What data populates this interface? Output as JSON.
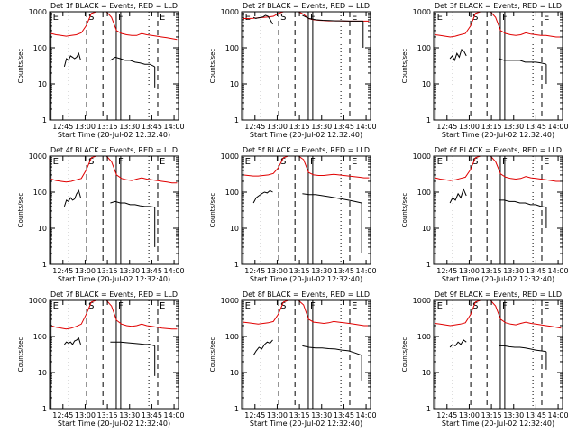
{
  "figure": {
    "panel_titles": [
      "Det 1f BLACK = Events, RED = LLD",
      "Det 2f BLACK = Events, RED = LLD",
      "Det 3f BLACK = Events, RED = LLD",
      "Det 4f BLACK = Events, RED = LLD",
      "Det 5f BLACK = Events, RED = LLD",
      "Det 6f BLACK = Events, RED = LLD",
      "Det 7f BLACK = Events, RED = LLD",
      "Det 8f BLACK = Events, RED = LLD",
      "Det 9f BLACK = Events, RED = LLD"
    ]
  },
  "colors": {
    "events": "#000000",
    "lld": "#e00000"
  },
  "chart_data": {
    "type": "line",
    "layout": "3x3 grid",
    "title_template": "Det {n}f BLACK = Events, RED = LLD",
    "xlabel": "Start Time (20-Jul-02 12:32:40)",
    "ylabel": "Counts/sec",
    "yscale": "log",
    "ylim": [
      1,
      1000
    ],
    "yticks": [
      1,
      10,
      100,
      1000
    ],
    "ytick_labels": [
      "1",
      "10",
      "100",
      "1000"
    ],
    "xlim_minutes": [
      36,
      123
    ],
    "xticks_minutes": [
      45,
      60,
      75,
      90,
      105,
      120
    ],
    "xtick_labels": [
      "12:45",
      "13:00",
      "13:15",
      "13:30",
      "13:45",
      "14:00"
    ],
    "markers": [
      {
        "label": "E",
        "minutes": 37,
        "style": "solid"
      },
      {
        "label": "",
        "minutes": 49,
        "style": "dotted"
      },
      {
        "label": "S",
        "minutes": 61,
        "style": "dashed"
      },
      {
        "label": "",
        "minutes": 72,
        "style": "dashed"
      },
      {
        "label": "F",
        "minutes": 81,
        "style": "solid"
      },
      {
        "label": "",
        "minutes": 84,
        "style": "solid"
      },
      {
        "label": "",
        "minutes": 103,
        "style": "dotted"
      },
      {
        "label": "E",
        "minutes": 109,
        "style": "dashed"
      }
    ],
    "series_names": [
      "Events",
      "LLD"
    ],
    "panels": [
      {
        "detector": "1f",
        "events_segments": [
          {
            "start": 46,
            "end": 57,
            "values": [
              30,
              50,
              45,
              60,
              55,
              50,
              55,
              70,
              45
            ]
          },
          {
            "start": 77,
            "end": 107,
            "values": [
              45,
              55,
              50,
              45,
              45,
              40,
              38,
              35,
              35,
              30
            ]
          }
        ],
        "events_dropout": {
          "minutes": 107,
          "to": 8
        },
        "lld_values": [
          250,
          230,
          220,
          210,
          220,
          230,
          260,
          420,
          900,
          1000,
          1000,
          1000,
          700,
          300,
          250,
          230,
          220,
          220,
          250,
          230,
          220,
          210,
          200,
          190,
          180,
          170
        ]
      },
      {
        "detector": "2f",
        "events_segments": [
          {
            "start": 44,
            "end": 57,
            "values": [
              700,
              650,
              680,
              700,
              720,
              800,
              750,
              600,
              450
            ]
          },
          {
            "start": 77,
            "end": 118,
            "values": [
              800,
              650,
              600,
              580,
              570,
              560,
              560,
              550,
              550,
              550
            ]
          }
        ],
        "events_dropout": {
          "minutes": 118,
          "to": 100
        },
        "lld_values": [
          650,
          650,
          660,
          680,
          700,
          720,
          750,
          900,
          1000,
          1000,
          1000,
          1000,
          850,
          650,
          600,
          580,
          570,
          560,
          560,
          560,
          550,
          550,
          550,
          550,
          550,
          550
        ]
      },
      {
        "detector": "3f",
        "events_segments": [
          {
            "start": 47,
            "end": 58,
            "values": [
              50,
              60,
              45,
              70,
              55,
              90,
              80,
              60
            ]
          },
          {
            "start": 80,
            "end": 112,
            "values": [
              50,
              45,
              45,
              45,
              45,
              40,
              40,
              40,
              38,
              35
            ]
          }
        ],
        "events_dropout": {
          "minutes": 112,
          "to": 10
        },
        "lld_values": [
          230,
          220,
          210,
          200,
          210,
          230,
          250,
          400,
          900,
          1000,
          1000,
          1000,
          700,
          300,
          250,
          230,
          220,
          230,
          260,
          240,
          230,
          220,
          220,
          210,
          200,
          200
        ]
      },
      {
        "detector": "4f",
        "events_segments": [
          {
            "start": 46,
            "end": 57,
            "values": [
              40,
              60,
              55,
              70,
              60,
              65,
              90,
              110,
              70
            ]
          },
          {
            "start": 77,
            "end": 107,
            "values": [
              50,
              55,
              50,
              50,
              45,
              45,
              42,
              40,
              40,
              38
            ]
          }
        ],
        "events_dropout": {
          "minutes": 107,
          "to": 3
        },
        "lld_values": [
          230,
          210,
          200,
          190,
          200,
          220,
          240,
          420,
          900,
          1000,
          1000,
          1000,
          700,
          300,
          240,
          220,
          210,
          230,
          250,
          230,
          220,
          210,
          200,
          190,
          180,
          180
        ]
      },
      {
        "detector": "5f",
        "events_segments": [
          {
            "start": 44,
            "end": 57,
            "values": [
              50,
              70,
              80,
              90,
              100,
              95,
              110,
              100
            ]
          },
          {
            "start": 77,
            "end": 117,
            "values": [
              90,
              85,
              85,
              80,
              75,
              70,
              65,
              60,
              55,
              50
            ]
          }
        ],
        "events_dropout": {
          "minutes": 117,
          "to": 2
        },
        "lld_values": [
          300,
          290,
          280,
          280,
          290,
          300,
          330,
          480,
          900,
          1000,
          1000,
          1000,
          800,
          350,
          300,
          290,
          290,
          300,
          310,
          300,
          290,
          280,
          270,
          260,
          250,
          250
        ]
      },
      {
        "detector": "6f",
        "events_segments": [
          {
            "start": 47,
            "end": 58,
            "values": [
              50,
              70,
              60,
              90,
              70,
              120,
              80
            ]
          },
          {
            "start": 80,
            "end": 112,
            "values": [
              60,
              60,
              55,
              55,
              50,
              50,
              45,
              45,
              40,
              38
            ]
          }
        ],
        "events_dropout": {
          "minutes": 112,
          "to": 10
        },
        "lld_values": [
          250,
          230,
          220,
          210,
          220,
          240,
          260,
          420,
          900,
          1000,
          1000,
          1000,
          700,
          320,
          260,
          240,
          230,
          240,
          270,
          250,
          240,
          230,
          220,
          210,
          200,
          200
        ]
      },
      {
        "detector": "7f",
        "events_segments": [
          {
            "start": 46,
            "end": 57,
            "values": [
              60,
              70,
              65,
              70,
              60,
              75,
              80,
              90,
              60
            ]
          },
          {
            "start": 77,
            "end": 107,
            "values": [
              70,
              70,
              70,
              68,
              66,
              64,
              62,
              60,
              60,
              55
            ]
          }
        ],
        "events_dropout": {
          "minutes": 107,
          "to": 8
        },
        "lld_values": [
          200,
          180,
          170,
          160,
          170,
          190,
          220,
          420,
          900,
          1000,
          1000,
          1000,
          700,
          280,
          220,
          200,
          190,
          200,
          220,
          200,
          190,
          180,
          170,
          165,
          160,
          160
        ]
      },
      {
        "detector": "8f",
        "events_segments": [
          {
            "start": 44,
            "end": 57,
            "values": [
              30,
              40,
              50,
              45,
              60,
              70,
              65,
              80
            ]
          },
          {
            "start": 77,
            "end": 117,
            "values": [
              55,
              50,
              48,
              48,
              46,
              45,
              42,
              40,
              35,
              30
            ]
          }
        ],
        "events_dropout": {
          "minutes": 117,
          "to": 6
        },
        "lld_values": [
          250,
          240,
          230,
          220,
          230,
          240,
          260,
          420,
          900,
          1000,
          1000,
          1000,
          750,
          300,
          250,
          240,
          230,
          240,
          260,
          250,
          240,
          230,
          220,
          210,
          200,
          200
        ]
      },
      {
        "detector": "9f",
        "events_segments": [
          {
            "start": 47,
            "end": 58,
            "values": [
              50,
              60,
              55,
              70,
              60,
              80,
              70
            ]
          },
          {
            "start": 80,
            "end": 112,
            "values": [
              55,
              55,
              52,
              50,
              50,
              48,
              45,
              42,
              40,
              38
            ]
          }
        ],
        "events_dropout": {
          "minutes": 112,
          "to": 12
        },
        "lld_values": [
          230,
          220,
          210,
          200,
          210,
          220,
          240,
          400,
          900,
          1000,
          1000,
          1000,
          700,
          300,
          240,
          220,
          210,
          230,
          250,
          230,
          220,
          210,
          200,
          190,
          180,
          170
        ]
      }
    ]
  }
}
